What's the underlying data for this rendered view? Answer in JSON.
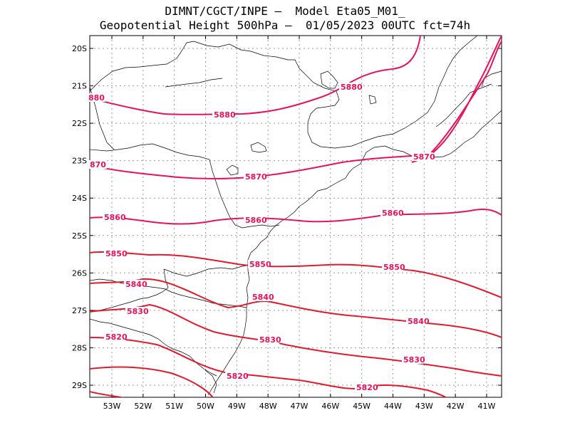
{
  "title": {
    "line1": "DIMNT/CGCT/INPE –  Model Eta05_M01_",
    "line2": "Geopotential Height 500hPa –  01/05/2023 00UTC fct=74h"
  },
  "axes": {
    "lon_labels": [
      "53W",
      "52W",
      "51W",
      "50W",
      "49W",
      "48W",
      "47W",
      "46W",
      "45W",
      "44W",
      "43W",
      "42W",
      "41W"
    ],
    "lat_labels": [
      "20S",
      "21S",
      "22S",
      "23S",
      "24S",
      "25S",
      "26S",
      "27S",
      "28S",
      "29S"
    ]
  },
  "colors": {
    "contour_a": "#e8125a",
    "contour_b": "#e31a2d",
    "coast": "#000000",
    "grid": "#999999"
  },
  "contours": {
    "c5880": "5880",
    "c5880_left": "880",
    "c5880_right": "5880",
    "c5870": "5870",
    "c5870_left": "870",
    "c5870_right": "5870",
    "c5860_a": "5860",
    "c5860_b": "5860",
    "c5860_c": "5860",
    "c5850_a": "5850",
    "c5850_b": "5850",
    "c5850_c": "5850",
    "c5840_a": "5840",
    "c5840_b": "5840",
    "c5840_c": "5840",
    "c5830_a": "5830",
    "c5830_b": "5830",
    "c5830_c": "5830",
    "c5820_a": "5820",
    "c5820_b": "5820",
    "c5820_c": "5820"
  }
}
